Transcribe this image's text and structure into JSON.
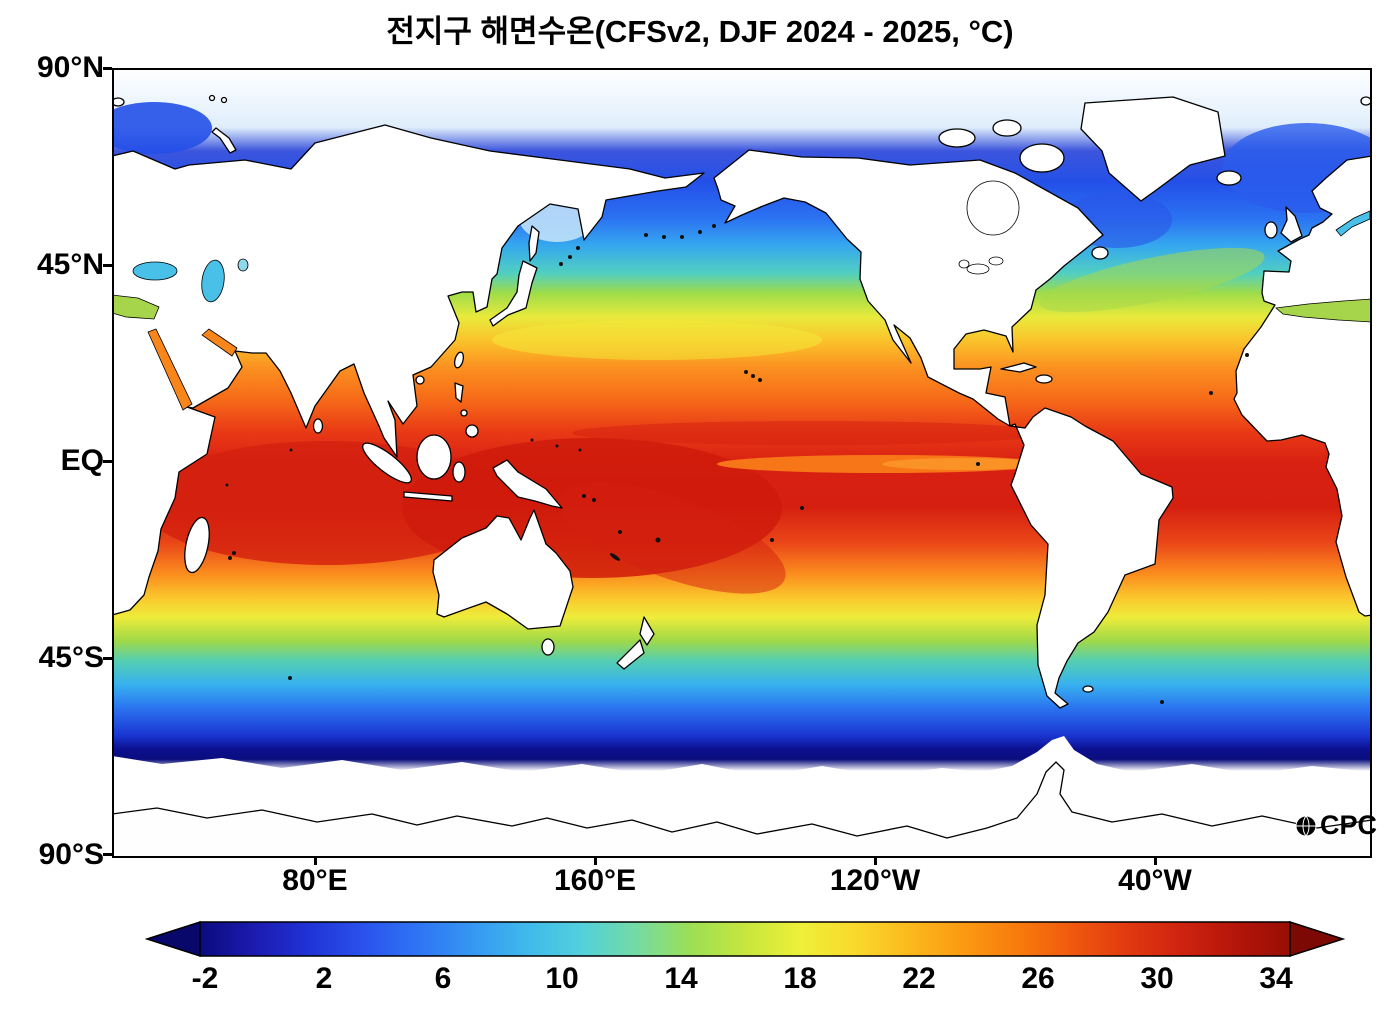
{
  "title": "전지구 해면수온(CFSv2, DJF 2024 - 2025, °C)",
  "axes": {
    "lat_labels": [
      "90°N",
      "45°N",
      "EQ",
      "45°S",
      "90°S"
    ],
    "lon_labels": [
      "80°E",
      "160°E",
      "120°W",
      "40°W"
    ]
  },
  "colorbar": {
    "tick_labels": [
      "-2",
      "2",
      "6",
      "10",
      "14",
      "18",
      "22",
      "26",
      "30",
      "34"
    ],
    "units": "°C",
    "value_range": [
      -4,
      36
    ],
    "arrow_left_color": "#08086a",
    "arrow_right_color": "#7c0903",
    "colors": [
      "#0b0b7e",
      "#1b1bb0",
      "#2033d6",
      "#2a52ec",
      "#2f74f5",
      "#3597f2",
      "#3fb9ec",
      "#52d0dc",
      "#74dba4",
      "#9cdf55",
      "#c6e63e",
      "#eef039",
      "#f9da2c",
      "#fbba1d",
      "#fb9a12",
      "#f87b0c",
      "#f0590e",
      "#e13a10",
      "#cf2310",
      "#b5150a",
      "#970e04"
    ]
  },
  "logo": {
    "text": "CPC"
  },
  "chart_data": {
    "type": "heatmap",
    "title": "전지구 해면수온(CFSv2, DJF 2024 - 2025, °C)",
    "variable": "해면수온 (sea surface temperature)",
    "model": "CFSv2",
    "season": "DJF 2024 - 2025",
    "units": "°C",
    "projection": "global equirectangular, Pacific-centered",
    "lat_ticks": [
      "90°N",
      "45°N",
      "EQ",
      "45°S",
      "90°S"
    ],
    "lon_ticks": [
      "80°E",
      "160°E",
      "120°W",
      "40°W"
    ],
    "colorbar_ticks": [
      -2,
      2,
      6,
      10,
      14,
      18,
      22,
      26,
      30,
      34
    ],
    "colorbar_range": [
      -4,
      36
    ],
    "zonal_mean_sst": {
      "lat": [
        70,
        60,
        50,
        45,
        40,
        30,
        20,
        10,
        0,
        -10,
        -20,
        -30,
        -40,
        -45,
        -50,
        -60,
        -65
      ],
      "sst_c": [
        -1,
        2,
        6,
        10,
        14,
        21,
        26,
        28,
        29,
        29,
        27,
        22,
        14,
        10,
        6,
        0,
        -1
      ]
    },
    "notable_features": [
      "western Pacific and Indian Ocean warm pool near 29-30 °C",
      "slightly cooler tongue along the equatorial eastern Pacific near 25-26 °C",
      "warm Kuroshio and Gulf Stream extensions",
      "white ice/no-data regions poleward of about 60°S and in the Arctic"
    ]
  }
}
